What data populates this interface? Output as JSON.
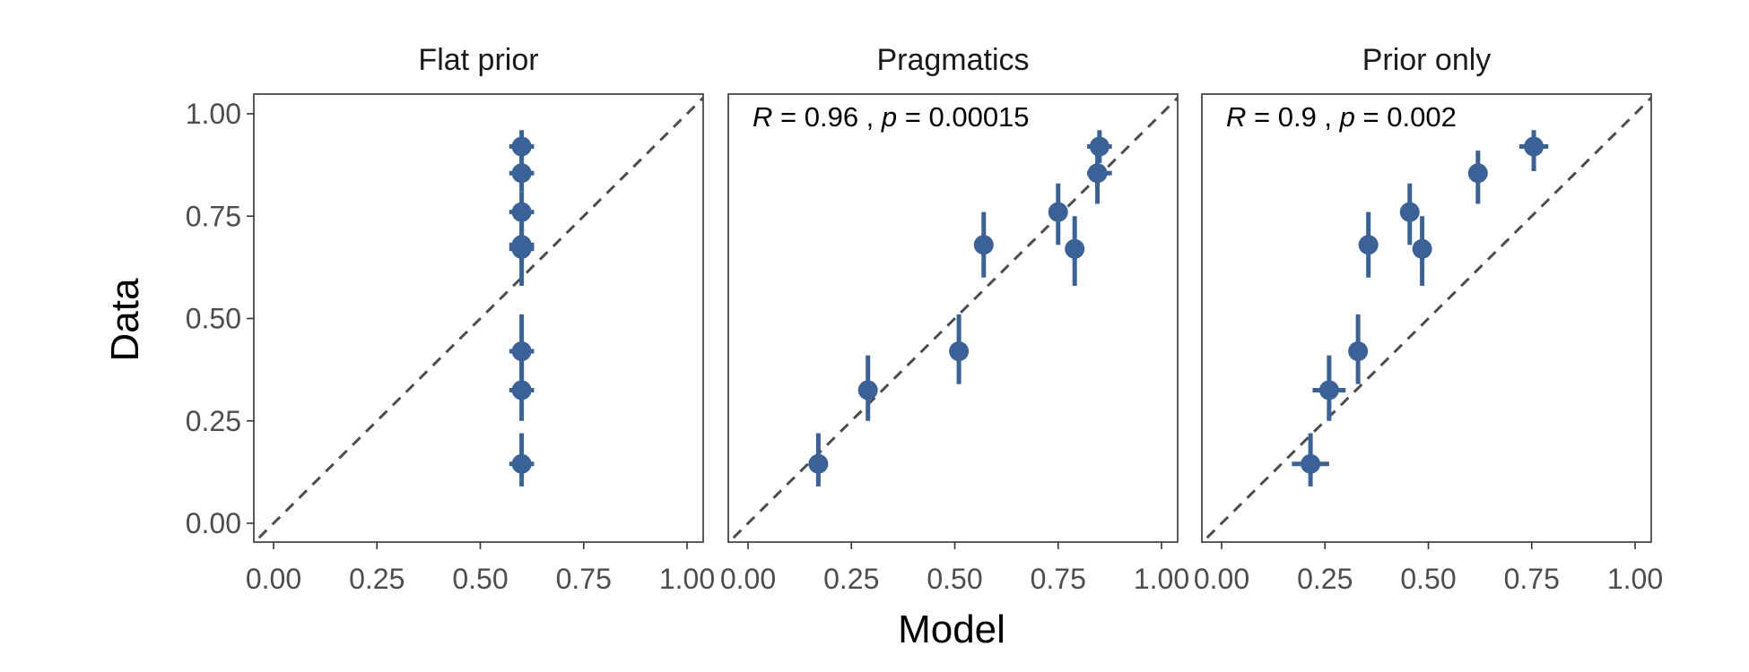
{
  "chart_data": {
    "type": "scatter",
    "xlabel": "Model",
    "ylabel": "Data",
    "xlim": [
      0,
      1
    ],
    "ylim": [
      0,
      1
    ],
    "x_ticks": [
      "0.00",
      "0.25",
      "0.50",
      "0.75",
      "1.00"
    ],
    "y_ticks": [
      "0.00",
      "0.25",
      "0.50",
      "0.75",
      "1.00"
    ],
    "tick_values": [
      0,
      0.25,
      0.5,
      0.75,
      1.0
    ],
    "reference_line": "y = x (dashed)",
    "point_color": "#3a6297",
    "panels": [
      {
        "title": "Flat prior",
        "annotation": null,
        "points": [
          {
            "x": 0.6,
            "y": 0.92,
            "y_low": 0.88,
            "y_high": 0.96,
            "x_low": 0.57,
            "x_high": 0.63
          },
          {
            "x": 0.6,
            "y": 0.855,
            "y_low": 0.81,
            "y_high": 0.9,
            "x_low": 0.57,
            "x_high": 0.63
          },
          {
            "x": 0.6,
            "y": 0.76,
            "y_low": 0.71,
            "y_high": 0.81,
            "x_low": 0.57,
            "x_high": 0.63
          },
          {
            "x": 0.6,
            "y": 0.68,
            "y_low": 0.64,
            "y_high": 0.72,
            "x_low": 0.57,
            "x_high": 0.63
          },
          {
            "x": 0.6,
            "y": 0.67,
            "y_low": 0.58,
            "y_high": 0.75,
            "x_low": 0.57,
            "x_high": 0.63
          },
          {
            "x": 0.6,
            "y": 0.42,
            "y_low": 0.34,
            "y_high": 0.51,
            "x_low": 0.57,
            "x_high": 0.63
          },
          {
            "x": 0.6,
            "y": 0.325,
            "y_low": 0.25,
            "y_high": 0.4,
            "x_low": 0.57,
            "x_high": 0.63
          },
          {
            "x": 0.6,
            "y": 0.145,
            "y_low": 0.09,
            "y_high": 0.22,
            "x_low": 0.57,
            "x_high": 0.63
          }
        ]
      },
      {
        "title": "Pragmatics",
        "annotation": {
          "r_label": "R",
          "r_value": " = 0.96 , ",
          "p_label": "p",
          "p_value": " = 0.00015"
        },
        "points": [
          {
            "x": 0.85,
            "y": 0.92,
            "y_low": 0.88,
            "y_high": 0.96,
            "x_low": 0.82,
            "x_high": 0.88
          },
          {
            "x": 0.845,
            "y": 0.855,
            "y_low": 0.78,
            "y_high": 0.9,
            "x_low": 0.82,
            "x_high": 0.88
          },
          {
            "x": 0.75,
            "y": 0.76,
            "y_low": 0.68,
            "y_high": 0.83,
            "x_low": null,
            "x_high": null
          },
          {
            "x": 0.57,
            "y": 0.68,
            "y_low": 0.6,
            "y_high": 0.76,
            "x_low": null,
            "x_high": null
          },
          {
            "x": 0.79,
            "y": 0.67,
            "y_low": 0.58,
            "y_high": 0.75,
            "x_low": null,
            "x_high": null
          },
          {
            "x": 0.51,
            "y": 0.42,
            "y_low": 0.34,
            "y_high": 0.51,
            "x_low": null,
            "x_high": null
          },
          {
            "x": 0.29,
            "y": 0.325,
            "y_low": 0.25,
            "y_high": 0.41,
            "x_low": null,
            "x_high": null
          },
          {
            "x": 0.17,
            "y": 0.145,
            "y_low": 0.09,
            "y_high": 0.22,
            "x_low": 0.16,
            "x_high": 0.19
          }
        ]
      },
      {
        "title": "Prior only",
        "annotation": {
          "r_label": "R",
          "r_value": " = 0.9 , ",
          "p_label": "p",
          "p_value": " = 0.002"
        },
        "points": [
          {
            "x": 0.755,
            "y": 0.92,
            "y_low": 0.86,
            "y_high": 0.96,
            "x_low": 0.72,
            "x_high": 0.79
          },
          {
            "x": 0.62,
            "y": 0.855,
            "y_low": 0.78,
            "y_high": 0.91,
            "x_low": null,
            "x_high": null
          },
          {
            "x": 0.455,
            "y": 0.76,
            "y_low": 0.68,
            "y_high": 0.83,
            "x_low": null,
            "x_high": null
          },
          {
            "x": 0.355,
            "y": 0.68,
            "y_low": 0.6,
            "y_high": 0.76,
            "x_low": null,
            "x_high": null
          },
          {
            "x": 0.485,
            "y": 0.67,
            "y_low": 0.58,
            "y_high": 0.75,
            "x_low": null,
            "x_high": null
          },
          {
            "x": 0.33,
            "y": 0.42,
            "y_low": 0.34,
            "y_high": 0.51,
            "x_low": null,
            "x_high": null
          },
          {
            "x": 0.26,
            "y": 0.325,
            "y_low": 0.25,
            "y_high": 0.41,
            "x_low": 0.22,
            "x_high": 0.3
          },
          {
            "x": 0.215,
            "y": 0.145,
            "y_low": 0.09,
            "y_high": 0.22,
            "x_low": 0.17,
            "x_high": 0.26
          }
        ]
      }
    ]
  }
}
